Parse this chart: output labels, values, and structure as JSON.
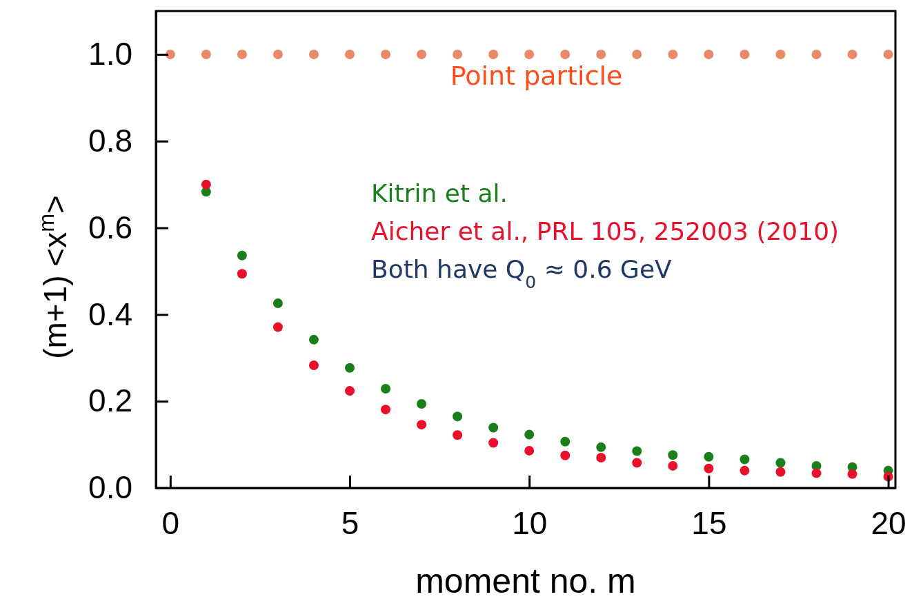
{
  "chart_data": {
    "type": "scatter",
    "xlabel": "moment no. m",
    "ylabel": "(m+1) <x$^{m}$>",
    "x": [
      0,
      1,
      2,
      3,
      4,
      5,
      6,
      7,
      8,
      9,
      10,
      11,
      12,
      13,
      14,
      15,
      16,
      17,
      18,
      19,
      20
    ],
    "xlim": [
      -0.4,
      20.2
    ],
    "ylim": [
      0,
      1.1
    ],
    "xticks": [
      0,
      5,
      10,
      15,
      20
    ],
    "yticks": [
      {
        "value": 0,
        "label": "0.0"
      },
      0.2,
      0.4,
      0.6,
      0.8,
      {
        "value": 1,
        "label": "1.0"
      }
    ],
    "grid": false,
    "legend": "right",
    "marker": "circle",
    "series": [
      {
        "name": "Point particle",
        "color": "#e8896a",
        "values": [
          1,
          1,
          1,
          1,
          1,
          1,
          1,
          1,
          1,
          1,
          1,
          1,
          1,
          1,
          1,
          1,
          1,
          1,
          1,
          1,
          1
        ]
      },
      {
        "name": "Kitrin et al.",
        "color": "#1a7f1a",
        "values": [
          null,
          0.683,
          0.536,
          0.426,
          0.342,
          0.277,
          0.229,
          0.194,
          0.165,
          0.139,
          0.123,
          0.107,
          0.094,
          0.085,
          0.076,
          0.072,
          0.066,
          0.058,
          0.051,
          0.048,
          0.04
        ]
      },
      {
        "name": "Aicher et al., PRL 105, 252003 (2010)",
        "color": "#e8102a",
        "values": [
          null,
          0.7,
          0.494,
          0.371,
          0.283,
          0.224,
          0.181,
          0.146,
          0.122,
          0.104,
          0.086,
          0.075,
          0.07,
          0.058,
          0.051,
          0.045,
          0.04,
          0.037,
          0.034,
          0.032,
          0.026
        ]
      }
    ],
    "annotations": [
      "Both have Q$_{0}$ ≈ 0.6 GeV"
    ]
  }
}
